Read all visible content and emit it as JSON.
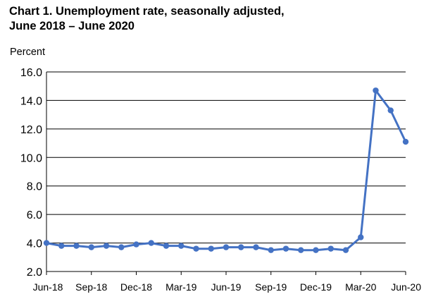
{
  "chart_data": {
    "type": "line",
    "title": "Chart 1. Unemployment rate, seasonally adjusted,",
    "subtitle": "June 2018 – June 2020",
    "ylabel": "Percent",
    "xlabel": "",
    "ylim": [
      2.0,
      16.0
    ],
    "y_ticks": [
      "2.0",
      "4.0",
      "6.0",
      "8.0",
      "10.0",
      "12.0",
      "14.0",
      "16.0"
    ],
    "grid": true,
    "x_tick_labels": [
      {
        "index": 0,
        "label": "Jun-18"
      },
      {
        "index": 3,
        "label": "Sep-18"
      },
      {
        "index": 6,
        "label": "Dec-18"
      },
      {
        "index": 9,
        "label": "Mar-19"
      },
      {
        "index": 12,
        "label": "Jun-19"
      },
      {
        "index": 15,
        "label": "Sep-19"
      },
      {
        "index": 18,
        "label": "Dec-19"
      },
      {
        "index": 21,
        "label": "Mar-20"
      },
      {
        "index": 24,
        "label": "Jun-20"
      }
    ],
    "x": [
      "Jun-18",
      "Jul-18",
      "Aug-18",
      "Sep-18",
      "Oct-18",
      "Nov-18",
      "Dec-18",
      "Jan-19",
      "Feb-19",
      "Mar-19",
      "Apr-19",
      "May-19",
      "Jun-19",
      "Jul-19",
      "Aug-19",
      "Sep-19",
      "Oct-19",
      "Nov-19",
      "Dec-19",
      "Jan-20",
      "Feb-20",
      "Mar-20",
      "Apr-20",
      "May-20",
      "Jun-20"
    ],
    "series": [
      {
        "values": [
          4.0,
          3.8,
          3.8,
          3.7,
          3.8,
          3.7,
          3.9,
          4.0,
          3.8,
          3.8,
          3.6,
          3.6,
          3.7,
          3.7,
          3.7,
          3.5,
          3.6,
          3.5,
          3.5,
          3.6,
          3.5,
          4.4,
          14.7,
          13.3,
          11.1
        ],
        "color": "#4472c4"
      }
    ]
  }
}
